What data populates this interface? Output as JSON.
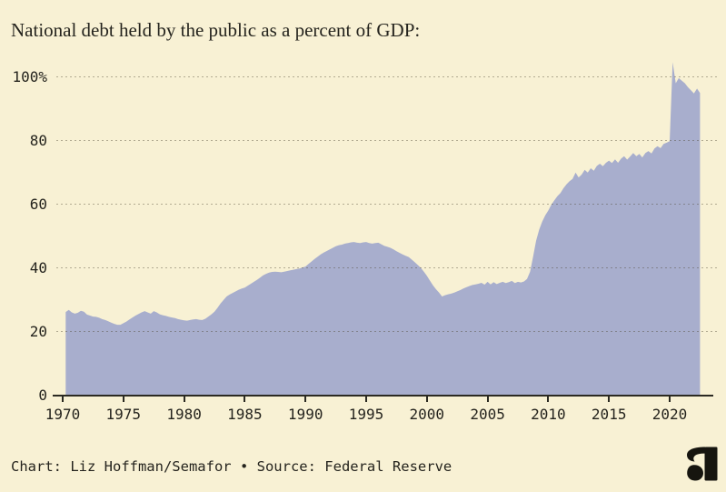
{
  "title": "National debt held by the public as a percent of GDP:",
  "footer": {
    "text": "Chart: Liz Hoffman/Semafor • Source: Federal Reserve"
  },
  "branding": {
    "logo_icon": "semafor-logo"
  },
  "colors": {
    "background": "#f8f1d4",
    "area_fill": "#a8aecd",
    "grid": "rgba(72,66,46,0.40)",
    "axis": "#2b2a22",
    "text": "#25241e",
    "logo": "#16150f"
  },
  "chart_data": {
    "type": "area",
    "title": "National debt held by the public as a percent of GDP:",
    "xlabel": "",
    "ylabel": "",
    "xlim": [
      1969.5,
      2024
    ],
    "ylim": [
      0,
      105
    ],
    "grid": "horizontal-dashed",
    "legend": "none",
    "x_ticks": [
      1970,
      1975,
      1980,
      1985,
      1990,
      1995,
      2000,
      2005,
      2010,
      2015,
      2020
    ],
    "y_ticks": [
      0,
      20,
      40,
      60,
      80,
      100
    ],
    "y_tick_labels": [
      "0",
      "20",
      "40",
      "60",
      "80",
      "100%"
    ],
    "series": {
      "name": "Federal debt held by the public, percent of GDP (quarterly)",
      "x_start": 1970.25,
      "x_step": 0.25,
      "values": [
        26.1,
        26.8,
        26.0,
        25.6,
        25.9,
        26.5,
        26.2,
        25.3,
        25.0,
        24.7,
        24.6,
        24.3,
        23.9,
        23.6,
        23.2,
        22.8,
        22.4,
        22.1,
        22.1,
        22.6,
        23.1,
        23.8,
        24.4,
        25.0,
        25.5,
        26.0,
        26.4,
        26.0,
        25.6,
        26.4,
        26.0,
        25.4,
        25.1,
        24.9,
        24.6,
        24.4,
        24.2,
        23.9,
        23.7,
        23.5,
        23.4,
        23.6,
        23.8,
        23.9,
        23.7,
        23.6,
        24.0,
        24.7,
        25.4,
        26.2,
        27.4,
        28.8,
        29.9,
        31.0,
        31.6,
        32.1,
        32.6,
        33.1,
        33.5,
        33.8,
        34.4,
        35.0,
        35.6,
        36.2,
        36.9,
        37.6,
        38.1,
        38.5,
        38.7,
        38.8,
        38.7,
        38.6,
        38.8,
        39.0,
        39.2,
        39.4,
        39.6,
        39.8,
        40.1,
        40.4,
        41.2,
        42.0,
        42.8,
        43.5,
        44.2,
        44.8,
        45.3,
        45.8,
        46.3,
        46.8,
        47.1,
        47.3,
        47.6,
        47.8,
        48.0,
        48.1,
        47.9,
        47.8,
        48.0,
        48.1,
        47.8,
        47.6,
        47.8,
        47.9,
        47.4,
        46.9,
        46.6,
        46.3,
        45.8,
        45.2,
        44.7,
        44.2,
        43.8,
        43.4,
        42.6,
        41.8,
        40.9,
        40.0,
        38.8,
        37.5,
        36.0,
        34.5,
        33.3,
        32.2,
        31.0,
        31.4,
        31.7,
        31.9,
        32.2,
        32.6,
        33.0,
        33.5,
        33.9,
        34.3,
        34.6,
        34.8,
        35.0,
        35.3,
        34.7,
        35.6,
        34.8,
        35.5,
        34.9,
        35.3,
        35.6,
        35.2,
        35.5,
        35.9,
        35.2,
        35.6,
        35.4,
        35.7,
        36.5,
        38.8,
        43.5,
        48.5,
        52.0,
        54.5,
        56.5,
        58.0,
        59.8,
        61.2,
        62.5,
        63.5,
        65.0,
        66.2,
        67.2,
        67.9,
        69.9,
        68.4,
        69.3,
        70.8,
        69.9,
        71.3,
        70.5,
        72.0,
        72.7,
        71.9,
        73.0,
        73.7,
        72.9,
        74.1,
        73.0,
        74.3,
        75.1,
        74.0,
        75.0,
        76.1,
        75.1,
        75.8,
        74.7,
        76.1,
        76.7,
        75.9,
        77.5,
        78.2,
        77.6,
        78.9,
        79.3,
        79.8,
        104.6,
        98.0,
        99.6,
        98.8,
        98.0,
        96.8,
        95.8,
        94.8,
        96.3,
        94.9
      ]
    }
  }
}
